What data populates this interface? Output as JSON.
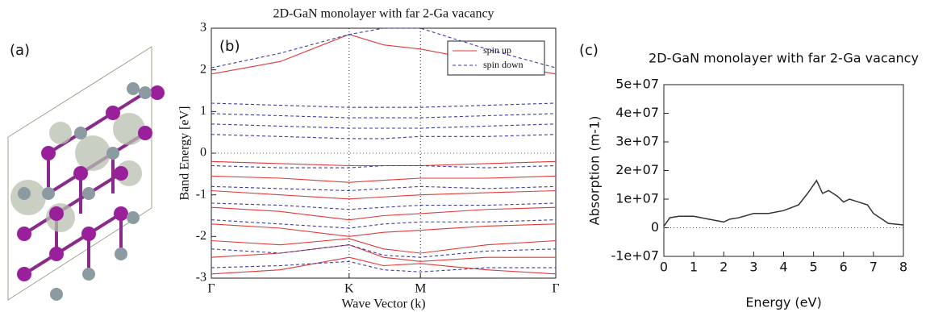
{
  "panel_labels": [
    "(a)",
    "(b)",
    "(c)"
  ],
  "chart_data": [
    {
      "type": "band_structure",
      "title": "2D-GaN monolayer with far 2-Ga vacancy",
      "x_label": "Wave Vector (k)",
      "y_label": "Band Energy [eV]",
      "x": [
        0,
        0.2,
        0.4,
        0.5,
        0.607,
        0.8,
        1
      ],
      "xlim": [
        0,
        1
      ],
      "xticks": [
        {
          "value": 0,
          "label": "Γ"
        },
        {
          "value": 0.4,
          "label": "K"
        },
        {
          "value": 0.607,
          "label": "M"
        },
        {
          "value": 1,
          "label": "Γ"
        }
      ],
      "ylim": [
        -3,
        3
      ],
      "yticks": [
        -3,
        -2,
        -1,
        0,
        1,
        2,
        3
      ],
      "zero_line": true,
      "tick_grid": true,
      "legend": "upper right",
      "series": [
        {
          "name": "spin up",
          "color": "#e03a3a",
          "line_style": "solid",
          "bands": [
            [
              1.9,
              2.2,
              2.85,
              2.6,
              2.5,
              2.2,
              1.9
            ],
            [
              -0.2,
              -0.25,
              -0.3,
              -0.3,
              -0.3,
              -0.25,
              -0.2
            ],
            [
              -0.55,
              -0.6,
              -0.7,
              -0.65,
              -0.6,
              -0.6,
              -0.55
            ],
            [
              -0.9,
              -1.0,
              -1.1,
              -1.05,
              -1.0,
              -0.95,
              -0.9
            ],
            [
              -1.3,
              -1.4,
              -1.6,
              -1.5,
              -1.45,
              -1.35,
              -1.3
            ],
            [
              -1.7,
              -1.8,
              -2.0,
              -1.9,
              -1.85,
              -1.75,
              -1.7
            ],
            [
              -2.1,
              -2.2,
              -2.05,
              -2.3,
              -2.4,
              -2.2,
              -2.1
            ],
            [
              -2.5,
              -2.4,
              -2.2,
              -2.5,
              -2.6,
              -2.5,
              -2.5
            ],
            [
              -2.9,
              -2.8,
              -2.5,
              -2.7,
              -2.65,
              -2.8,
              -2.9
            ]
          ]
        },
        {
          "name": "spin down",
          "color": "#3a3aa8",
          "line_style": "dashed",
          "bands": [
            [
              2.05,
              2.4,
              2.85,
              3,
              3,
              2.5,
              2.05
            ],
            [
              1.2,
              1.15,
              1.1,
              1.1,
              1.1,
              1.15,
              1.2
            ],
            [
              0.95,
              0.9,
              0.85,
              0.85,
              0.85,
              0.9,
              0.95
            ],
            [
              0.7,
              0.65,
              0.6,
              0.6,
              0.6,
              0.65,
              0.7
            ],
            [
              0.45,
              0.4,
              0.35,
              0.35,
              0.4,
              0.4,
              0.45
            ],
            [
              -0.3,
              -0.35,
              -0.35,
              -0.3,
              -0.3,
              -0.35,
              -0.3
            ],
            [
              -0.8,
              -0.85,
              -0.9,
              -0.85,
              -0.8,
              -0.85,
              -0.8
            ],
            [
              -1.2,
              -1.25,
              -1.35,
              -1.3,
              -1.25,
              -1.25,
              -1.2
            ],
            [
              -1.6,
              -1.7,
              -1.8,
              -1.7,
              -1.65,
              -1.65,
              -1.6
            ],
            [
              -2.3,
              -2.4,
              -2.2,
              -2.45,
              -2.5,
              -2.35,
              -2.3
            ],
            [
              -2.75,
              -2.7,
              -2.6,
              -2.8,
              -2.85,
              -2.75,
              -2.75
            ]
          ]
        }
      ]
    },
    {
      "type": "line",
      "title": "2D-GaN monolayer with far 2-Ga vacancy",
      "x_label": "Energy (eV)",
      "y_label": "Absorption (m-1)",
      "x": [
        0,
        0.2,
        0.5,
        1,
        1.5,
        2,
        2.2,
        2.5,
        3,
        3.5,
        4,
        4.5,
        4.8,
        5.1,
        5.3,
        5.5,
        5.8,
        6,
        6.2,
        6.5,
        6.8,
        7,
        7.5,
        8
      ],
      "values": [
        500000,
        3500000,
        4000000,
        4000000,
        3000000,
        2000000,
        3000000,
        3500000,
        5000000,
        5000000,
        6000000,
        8000000,
        12000000,
        16500000,
        12000000,
        13000000,
        11000000,
        9000000,
        10000000,
        9000000,
        8000000,
        5000000,
        1500000,
        1000000
      ],
      "color": "#333333",
      "xlim": [
        0,
        8
      ],
      "xticks": [
        0,
        1,
        2,
        3,
        4,
        5,
        6,
        7,
        8
      ],
      "ylim": [
        -10000000,
        50000000
      ],
      "yticks": [
        {
          "value": -10000000,
          "label": "-1e+07"
        },
        0,
        {
          "value": 10000000,
          "label": "1e+07"
        },
        {
          "value": 20000000,
          "label": "2e+07"
        },
        {
          "value": 30000000,
          "label": "3e+07"
        },
        {
          "value": 40000000,
          "label": "4e+07"
        },
        {
          "value": 50000000,
          "label": "5e+07"
        }
      ],
      "zero_line": true
    }
  ]
}
